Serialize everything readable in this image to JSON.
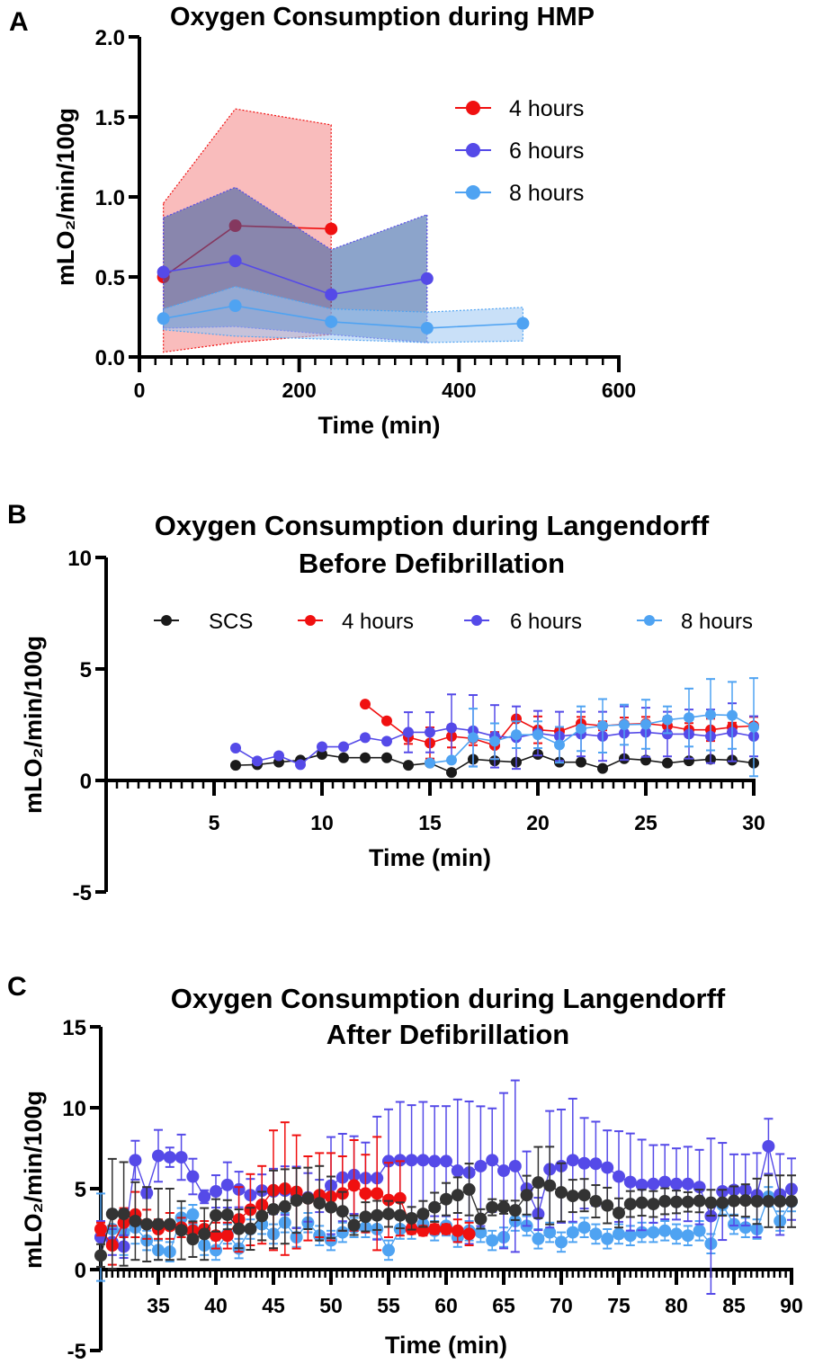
{
  "colors": {
    "scs": "#1a1a1a",
    "scs_c": "#333333",
    "h4": "#f01010",
    "h6": "#554ae8",
    "h8": "#4fa3f2"
  },
  "chart_data": [
    {
      "panel": "A",
      "type": "line",
      "title": "Oxygen Consumption during HMP",
      "xlabel": "Time (min)",
      "ylabel": "mLO₂/min/100g",
      "xlim": [
        0,
        600
      ],
      "ylim": [
        0,
        2.0
      ],
      "xticks": [
        0,
        200,
        400,
        600
      ],
      "yticks": [
        "0.0",
        "0.5",
        "1.0",
        "1.5",
        "2.0"
      ],
      "legend_position": "top-right",
      "error_style": "shaded band",
      "series": [
        {
          "name": "4 hours",
          "color_key": "h4",
          "x": [
            30,
            120,
            240
          ],
          "y": [
            0.5,
            0.82,
            0.8
          ],
          "lower": [
            0.03,
            0.09,
            0.14
          ],
          "upper": [
            0.96,
            1.55,
            1.45
          ]
        },
        {
          "name": "6 hours",
          "color_key": "h6",
          "x": [
            30,
            120,
            240,
            360
          ],
          "y": [
            0.53,
            0.6,
            0.39,
            0.49
          ],
          "lower": [
            0.18,
            0.19,
            0.14,
            0.09
          ],
          "upper": [
            0.87,
            1.06,
            0.67,
            0.89
          ]
        },
        {
          "name": "8 hours",
          "color_key": "h8",
          "x": [
            30,
            120,
            240,
            360,
            480
          ],
          "y": [
            0.24,
            0.32,
            0.22,
            0.18,
            0.21
          ],
          "lower": [
            0.17,
            0.13,
            0.11,
            0.09,
            0.1
          ],
          "upper": [
            0.3,
            0.44,
            0.3,
            0.28,
            0.31
          ]
        }
      ]
    },
    {
      "panel": "B",
      "type": "line",
      "title": [
        "Oxygen Consumption during Langendorff",
        "Before Defibrillation"
      ],
      "xlabel": "Time (min)",
      "ylabel": "mLO₂/min/100g",
      "xlim": [
        0,
        30
      ],
      "ylim": [
        -5,
        10
      ],
      "xticks": [
        5,
        10,
        15,
        20,
        25,
        30
      ],
      "yticks": [
        "-5",
        "0",
        "5",
        "10"
      ],
      "legend_position": "top",
      "error_style": "error bars",
      "series": [
        {
          "name": "SCS",
          "color_key": "scs",
          "x0": 6,
          "y": [
            0.68,
            0.71,
            0.82,
            0.91,
            1.17,
            1.02,
            1.02,
            1.02,
            0.68,
            0.78,
            0.36,
            0.95,
            0.88,
            0.82,
            1.17,
            0.82,
            0.82,
            0.54,
            0.98,
            0.91,
            0.78,
            0.88,
            0.95,
            0.91,
            0.78
          ],
          "err": []
        },
        {
          "name": "4 hours",
          "color_key": "h4",
          "x0": 12,
          "y": [
            3.42,
            2.67,
            1.94,
            1.68,
            1.98,
            1.88,
            1.57,
            2.76,
            2.27,
            2.2,
            2.55,
            2.45,
            2.52,
            2.55,
            2.45,
            2.27,
            2.27,
            2.39,
            2.45
          ],
          "err": [
            0,
            0,
            0.3,
            0.7,
            0.5,
            0.3,
            0.6,
            0.1,
            0.6,
            0.2,
            0.3,
            0.2,
            0.3,
            0.3,
            0.4,
            0.3,
            0.5,
            0.2,
            0.4
          ]
        },
        {
          "name": "6 hours",
          "color_key": "h6",
          "x0": 6,
          "y": [
            1.45,
            0.87,
            1.11,
            0.71,
            1.51,
            1.51,
            1.92,
            1.76,
            2.16,
            2.16,
            2.36,
            2.23,
            1.98,
            1.92,
            2.12,
            1.98,
            2.08,
            1.98,
            2.12,
            2.16,
            2.08,
            2.08,
            1.98,
            2.16,
            1.98
          ],
          "err": [
            0,
            0,
            0,
            0,
            0,
            0,
            0,
            0,
            0.9,
            0.9,
            1.5,
            1.6,
            1.4,
            1.4,
            1.0,
            1.1,
            1.0,
            1.1,
            1.2,
            1.1,
            1.0,
            1.1,
            1.2,
            1.3,
            0.9
          ]
        },
        {
          "name": "8 hours",
          "color_key": "h8",
          "x0": 15,
          "y": [
            0.78,
            0.91,
            1.92,
            1.76,
            2.05,
            2.05,
            1.6,
            2.32,
            2.45,
            2.5,
            2.52,
            2.72,
            2.82,
            2.95,
            2.92,
            2.39
          ],
          "err": [
            0,
            0.1,
            1.3,
            0.8,
            0.6,
            0.6,
            0.8,
            1.0,
            1.2,
            0.9,
            1.1,
            0.6,
            1.3,
            1.6,
            1.5,
            2.2
          ]
        }
      ]
    },
    {
      "panel": "C",
      "type": "line",
      "title": [
        "Oxygen Consumption during Langendorff",
        "After Defibrillation"
      ],
      "xlabel": "Time (min)",
      "ylabel": "mLO₂/min/100g",
      "xlim": [
        30,
        90
      ],
      "ylim": [
        -5,
        15
      ],
      "xticks": [
        35,
        40,
        45,
        50,
        55,
        60,
        65,
        70,
        75,
        80,
        85,
        90
      ],
      "yticks": [
        "-5",
        "0",
        "5",
        "10",
        "15"
      ],
      "error_style": "error bars",
      "series": [
        {
          "name": "8 hours",
          "color_key": "h8",
          "x0": 30,
          "y": [
            2.0,
            2.5,
            2.3,
            2.6,
            1.8,
            1.2,
            1.1,
            3.2,
            3.4,
            1.5,
            1.2,
            2.2,
            1.3,
            2.5,
            2.8,
            2.2,
            2.9,
            2.0,
            2.9,
            2.1,
            1.8,
            2.3,
            2.6,
            2.6,
            2.5,
            1.2,
            2.5,
            2.5,
            2.8,
            2.4,
            2.7,
            2.0,
            2.4,
            2.3,
            1.8,
            2.0,
            3.0,
            2.7,
            1.9,
            2.3,
            1.7,
            2.3,
            2.6,
            2.2,
            1.9,
            2.2,
            2.1,
            2.3,
            2.3,
            2.4,
            2.2,
            2.1,
            2.4,
            1.6,
            4.0,
            2.8,
            2.6,
            2.5,
            4.5,
            3.0,
            4.2
          ],
          "err": [
            2.7,
            1.2,
            1.4,
            1.0,
            0.6,
            0.6,
            0.6,
            0.6,
            0.6,
            0.6,
            0.6,
            0.6,
            0.6,
            0.6,
            0.6,
            0.6,
            0.6,
            0.6,
            0.6,
            0.6,
            0.6,
            0.6,
            0.6,
            0.6,
            0.6,
            0.6,
            0.6,
            0.6,
            0.6,
            0.6,
            0.6,
            0.6,
            0.6,
            0.6,
            0.6,
            0.6,
            0.6,
            0.6,
            0.6,
            0.6,
            0.6,
            0.6,
            0.6,
            0.6,
            0.6,
            0.6,
            0.6,
            0.6,
            0.6,
            0.6,
            0.6,
            0.6,
            0.6,
            0.6,
            0.6,
            0.6,
            0.6,
            0.6,
            0.6,
            0.6,
            0.6
          ]
        },
        {
          "name": "6 hours",
          "color_key": "h6",
          "x0": 30,
          "y": [
            2.0,
            1.7,
            1.42,
            6.76,
            4.73,
            7.03,
            6.94,
            6.94,
            5.75,
            4.5,
            4.83,
            5.23,
            4.95,
            4.6,
            4.88,
            4.83,
            4.88,
            4.46,
            4.46,
            4.55,
            5.19,
            5.69,
            5.84,
            5.65,
            5.65,
            6.7,
            6.76,
            6.76,
            6.76,
            6.7,
            6.7,
            6.11,
            5.99,
            6.39,
            6.76,
            6.11,
            6.39,
            5.0,
            3.44,
            6.2,
            6.39,
            6.76,
            6.57,
            6.54,
            6.3,
            5.75,
            5.41,
            5.23,
            5.29,
            5.41,
            5.29,
            5.29,
            5.1,
            3.3,
            4.83,
            4.92,
            4.92,
            4.6,
            7.62,
            4.64,
            4.97
          ],
          "err": [
            1.0,
            0.8,
            0.7,
            1.2,
            0.3,
            1.6,
            0.6,
            1.4,
            1.1,
            0.4,
            1.0,
            1.4,
            1.1,
            1.0,
            1.0,
            1.4,
            1.5,
            1.9,
            1.5,
            1.0,
            3.0,
            2.7,
            2.4,
            2.2,
            3.8,
            3.2,
            3.6,
            3.4,
            3.6,
            3.4,
            3.4,
            4.4,
            4.4,
            3.7,
            3.2,
            4.8,
            5.3,
            2.3,
            1.0,
            3.6,
            3.5,
            3.8,
            2.8,
            2.6,
            2.3,
            2.8,
            3.0,
            2.8,
            2.4,
            2.3,
            2.2,
            2.3,
            2.3,
            4.8,
            3.0,
            2.2,
            2.2,
            2.6,
            1.7,
            2.5,
            1.9
          ]
        },
        {
          "name": "4 hours",
          "color_key": "h4",
          "x0": 30,
          "y": [
            2.5,
            1.5,
            2.9,
            3.4,
            2.8,
            2.5,
            2.7,
            2.6,
            2.4,
            2.5,
            2.1,
            2.1,
            3.1,
            3.7,
            4.0,
            4.9,
            5.0,
            4.8,
            4.4,
            4.6,
            4.5,
            4.7,
            5.2,
            4.7,
            4.7,
            4.3,
            4.4,
            2.5,
            2.4,
            2.5,
            2.5,
            2.4,
            2.2
          ],
          "err": [
            0.4,
            1.2,
            0.9,
            1.4,
            0.9,
            0.6,
            0.8,
            0.6,
            0.5,
            0.5,
            0.8,
            0.8,
            2.0,
            2.2,
            2.4,
            3.7,
            4.1,
            3.5,
            2.6,
            2.6,
            2.7,
            2.3,
            2.8,
            2.4,
            3.5,
            2.3,
            2.3,
            0.3,
            0.3,
            0.3,
            0.3,
            0.7,
            0.7
          ]
        },
        {
          "name": "SCS",
          "color_key": "scs_c",
          "x0": 30,
          "y": [
            0.87,
            3.44,
            3.44,
            3.0,
            2.8,
            2.8,
            2.8,
            2.43,
            1.88,
            2.2,
            3.35,
            3.39,
            2.52,
            2.52,
            3.31,
            3.72,
            3.9,
            4.27,
            4.4,
            4.1,
            3.85,
            3.6,
            2.74,
            3.26,
            3.35,
            3.44,
            3.35,
            3.17,
            3.44,
            3.85,
            4.35,
            4.6,
            4.95,
            3.13,
            3.85,
            3.85,
            3.66,
            4.6,
            5.38,
            5.19,
            4.77,
            4.55,
            4.6,
            4.22,
            3.96,
            3.5,
            4.05,
            4.13,
            4.05,
            4.22,
            4.18,
            4.18,
            4.24,
            4.13,
            4.13,
            4.24,
            4.27,
            4.22,
            4.22,
            4.22,
            4.22
          ],
          "err": [
            0.7,
            3.4,
            3.2,
            2.4,
            2.3,
            2.2,
            2.2,
            1.8,
            1.1,
            1.6,
            1.0,
            0.9,
            1.2,
            1.3,
            1.5,
            2.4,
            2.3,
            2.0,
            1.9,
            2.3,
            1.9,
            1.2,
            0.6,
            0.9,
            0.9,
            0.8,
            0.8,
            0.7,
            0.8,
            0.9,
            1.0,
            1.1,
            1.6,
            0.6,
            0.5,
            0.4,
            0.6,
            1.2,
            2.2,
            2.4,
            1.8,
            1.0,
            1.0,
            1.0,
            1.1,
            0.9,
            0.8,
            0.8,
            0.8,
            0.8,
            0.7,
            0.6,
            0.7,
            0.8,
            0.8,
            0.9,
            1.0,
            1.4,
            1.6,
            1.6,
            1.6
          ]
        }
      ]
    }
  ]
}
